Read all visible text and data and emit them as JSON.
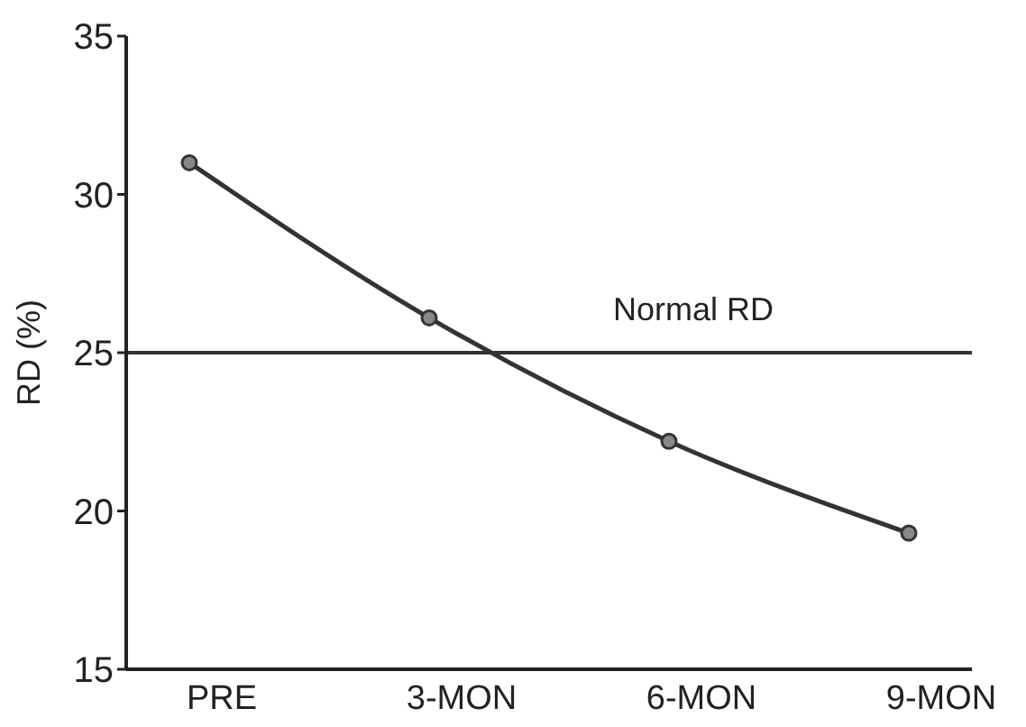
{
  "chart_data": {
    "type": "line",
    "ylabel": "RD (%)",
    "categories": [
      "PRE",
      "3-MON",
      "6-MON",
      "9-MON"
    ],
    "series": [
      {
        "color": "#333333",
        "values": [
          31.0,
          26.1,
          22.2,
          19.3
        ]
      }
    ],
    "ylim": [
      15,
      35
    ],
    "yticks": [
      15,
      20,
      25,
      30,
      35
    ],
    "marker": "circle",
    "line_style": "solid",
    "grid": false,
    "ref_lines": [
      {
        "axis": "y",
        "value": 25,
        "label": "Normal RD",
        "color": "#333333"
      }
    ]
  }
}
